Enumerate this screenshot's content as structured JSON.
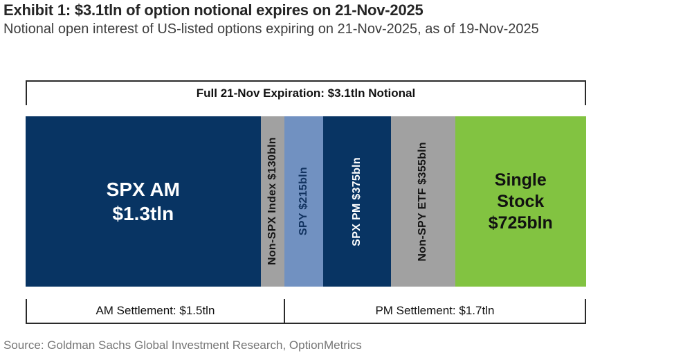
{
  "header": {
    "title": "Exhibit 1: $3.1tln of option notional expires on 21-Nov-2025",
    "subtitle": "Notional open interest of US-listed options expiring on 21-Nov-2025, as of 19-Nov-2025"
  },
  "chart_data": {
    "type": "bar",
    "subtype": "stacked-horizontal",
    "title": "Full 21-Nov Expiration: $3.1tln Notional",
    "total_label": "Full 21-Nov Expiration: $3.1tln Notional",
    "unit": "USD notional, bln",
    "segments": [
      {
        "name": "SPX AM",
        "label_lines": [
          "SPX AM",
          "$1.3tln"
        ],
        "value_bln": 1300,
        "color": "#083463",
        "label_color": "#ffffff",
        "orientation": "horizontal"
      },
      {
        "name": "Non-SPX Index",
        "label_lines": [
          "Non-SPX Index $130bln"
        ],
        "value_bln": 130,
        "color": "#a1a1a1",
        "label_color": "#141414",
        "orientation": "vertical"
      },
      {
        "name": "SPY",
        "label_lines": [
          "SPY $215bln"
        ],
        "value_bln": 215,
        "color": "#7191c1",
        "label_color": "#123360",
        "orientation": "vertical"
      },
      {
        "name": "SPX PM",
        "label_lines": [
          "SPX PM $375bln"
        ],
        "value_bln": 375,
        "color": "#083463",
        "label_color": "#ffffff",
        "orientation": "vertical"
      },
      {
        "name": "Non-SPY ETF",
        "label_lines": [
          "Non-SPY ETF $355bln"
        ],
        "value_bln": 355,
        "color": "#a1a1a1",
        "label_color": "#141414",
        "orientation": "vertical"
      },
      {
        "name": "Single Stock",
        "label_lines": [
          "Single",
          "Stock",
          "$725bln"
        ],
        "value_bln": 725,
        "color": "#82c341",
        "label_color": "#111111",
        "orientation": "horizontal"
      }
    ],
    "settlement_groups": [
      {
        "id": "am",
        "label": "AM Settlement: $1.5tln",
        "segments": [
          "SPX AM",
          "Non-SPX Index"
        ]
      },
      {
        "id": "pm",
        "label": "PM Settlement: $1.7tln",
        "segments": [
          "SPY",
          "SPX PM",
          "Non-SPY ETF",
          "Single Stock"
        ]
      }
    ]
  },
  "footer": {
    "source": "Source: Goldman Sachs Global Investment Research, OptionMetrics"
  }
}
